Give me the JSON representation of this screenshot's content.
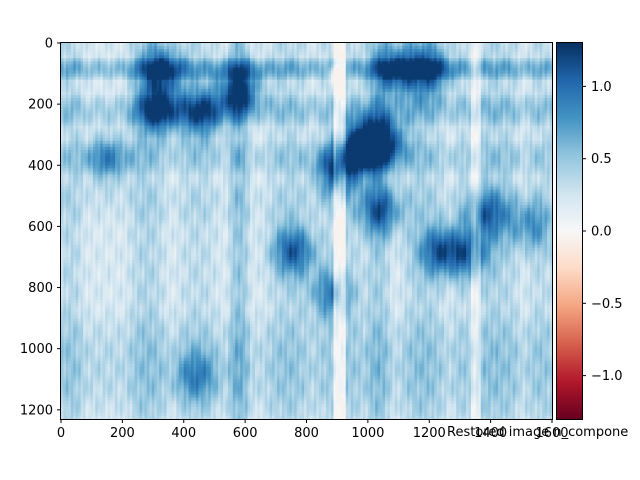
{
  "chart_data": {
    "type": "heatmap",
    "title": "",
    "xlabel": "Restored image n_compone",
    "ylabel": "",
    "xlim": [
      0,
      1600
    ],
    "ylim": [
      1230,
      0
    ],
    "x_ticks": [
      "0",
      "200",
      "400",
      "600",
      "800",
      "1000",
      "1200",
      "1400",
      "1600"
    ],
    "y_ticks": [
      "0",
      "200",
      "400",
      "600",
      "800",
      "1000",
      "1200"
    ],
    "colorbar": {
      "cmap": "RdBu",
      "vmin": -1.3,
      "vmax": 1.3,
      "ticks": [
        "−1.0",
        "−0.5",
        "0.0",
        "0.5",
        "1.0"
      ],
      "tick_values": [
        -1.0,
        -0.5,
        0.0,
        0.5,
        1.0
      ]
    },
    "column_bands_x": [
      [
        0,
        60,
        0.3
      ],
      [
        230,
        330,
        0.35
      ],
      [
        390,
        500,
        0.25
      ],
      [
        560,
        600,
        0.55
      ],
      [
        680,
        800,
        0.3
      ],
      [
        830,
        1000,
        0.25
      ],
      [
        1010,
        1060,
        0.45
      ],
      [
        1120,
        1240,
        0.35
      ],
      [
        1290,
        1330,
        0.2
      ],
      [
        1370,
        1420,
        0.35
      ],
      [
        1430,
        1480,
        0.3
      ],
      [
        1530,
        1600,
        0.25
      ]
    ],
    "row_bands_y": [
      [
        60,
        110,
        0.55
      ],
      [
        180,
        260,
        0.35
      ],
      [
        330,
        420,
        0.25
      ],
      [
        470,
        580,
        0.1
      ],
      [
        880,
        1230,
        0.25
      ]
    ],
    "blobs": [
      {
        "x": 320,
        "y": 220,
        "v": 0.9
      },
      {
        "x": 330,
        "y": 90,
        "v": 0.85
      },
      {
        "x": 460,
        "y": 230,
        "v": 0.75
      },
      {
        "x": 580,
        "y": 150,
        "v": 0.95
      },
      {
        "x": 980,
        "y": 340,
        "v": 1.1
      },
      {
        "x": 1050,
        "y": 320,
        "v": 1.0
      },
      {
        "x": 900,
        "y": 420,
        "v": 0.8
      },
      {
        "x": 760,
        "y": 680,
        "v": 0.75
      },
      {
        "x": 1240,
        "y": 680,
        "v": 0.8
      },
      {
        "x": 1330,
        "y": 690,
        "v": 0.6
      },
      {
        "x": 1390,
        "y": 560,
        "v": 0.65
      },
      {
        "x": 1040,
        "y": 550,
        "v": 0.7
      },
      {
        "x": 880,
        "y": 820,
        "v": 0.6
      },
      {
        "x": 150,
        "y": 380,
        "v": 0.55
      },
      {
        "x": 1090,
        "y": 90,
        "v": 0.9
      },
      {
        "x": 1200,
        "y": 90,
        "v": 0.8
      },
      {
        "x": 1530,
        "y": 600,
        "v": 0.5
      },
      {
        "x": 440,
        "y": 1090,
        "v": 0.45
      }
    ],
    "white_streaks_x": [
      [
        890,
        930,
        0.45
      ],
      [
        1340,
        1365,
        0.2
      ]
    ],
    "bright_spot": {
      "x": 900,
      "y": 100,
      "v": 0.05
    }
  }
}
